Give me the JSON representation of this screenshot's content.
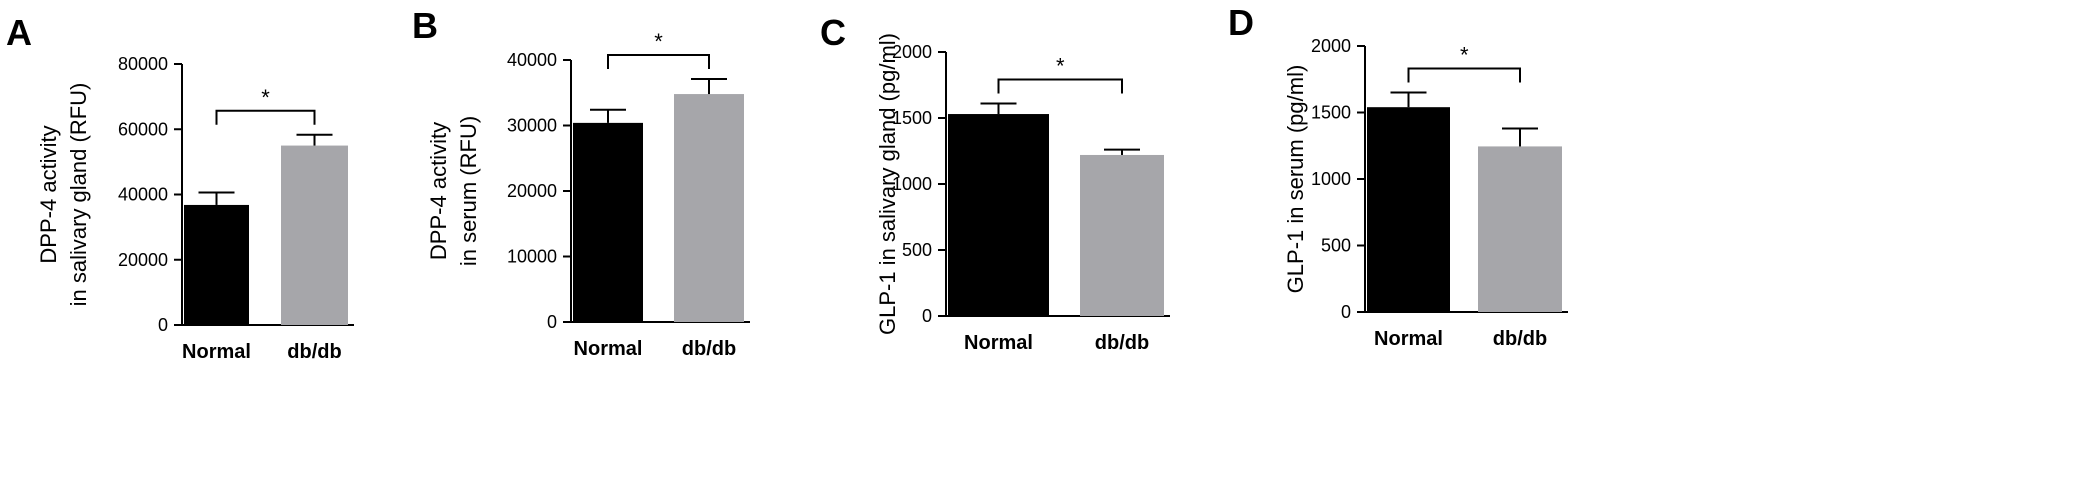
{
  "chart_data": [
    {
      "type": "bar",
      "panel": "A",
      "categories": [
        "Normal",
        "db/db"
      ],
      "values": [
        36800,
        55000
      ],
      "errors": [
        3800,
        3300
      ],
      "ylabel": [
        "DPP-4 activity",
        "in salivary gland (RFU)"
      ],
      "ylim": [
        0,
        80000
      ],
      "yticks": [
        "0",
        "20000",
        "40000",
        "60000",
        "80000"
      ],
      "significance": "*",
      "colors": [
        "#000000",
        "#a6a6aa"
      ]
    },
    {
      "type": "bar",
      "panel": "B",
      "categories": [
        "Normal",
        "db/db"
      ],
      "values": [
        30400,
        34800
      ],
      "errors": [
        2000,
        2300
      ],
      "ylabel": [
        "DPP-4 activity",
        "in serum (RFU)"
      ],
      "ylim": [
        0,
        40000
      ],
      "yticks": [
        "0",
        "10000",
        "20000",
        "30000",
        "40000"
      ],
      "significance": "*",
      "colors": [
        "#000000",
        "#a6a6aa"
      ]
    },
    {
      "type": "bar",
      "panel": "C",
      "categories": [
        "Normal",
        "db/db"
      ],
      "values": [
        1530,
        1220
      ],
      "errors": [
        80,
        40
      ],
      "ylabel": [
        "GLP-1 in salivary gland (pg/ml)"
      ],
      "ylim": [
        0,
        2000
      ],
      "yticks": [
        "0",
        "500",
        "1000",
        "1500",
        "2000"
      ],
      "significance": "*",
      "colors": [
        "#000000",
        "#a6a6aa"
      ]
    },
    {
      "type": "bar",
      "panel": "D",
      "categories": [
        "Normal",
        "db/db"
      ],
      "values": [
        1540,
        1245
      ],
      "errors": [
        110,
        135
      ],
      "ylabel": [
        "GLP-1 in serum (pg/ml)"
      ],
      "ylim": [
        0,
        2000
      ],
      "yticks": [
        "0",
        "500",
        "1000",
        "1500",
        "2000"
      ],
      "significance": "*",
      "colors": [
        "#000000",
        "#a6a6aa"
      ]
    }
  ]
}
